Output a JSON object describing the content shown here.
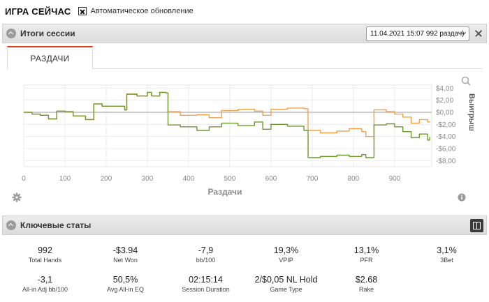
{
  "top": {
    "title": "ИГРА СЕЙЧАС",
    "auto_update_label": "Автоматическое обновление",
    "auto_update_checked": true
  },
  "session_panel": {
    "title": "Итоги сессии",
    "session_select_value": "11.04.2021 15:07 992 раздач)",
    "tab_label": "РАЗДАЧИ"
  },
  "chart_data": {
    "type": "line",
    "xlabel": "Раздачи",
    "ylabel": "Выигрыш",
    "xlim": [
      0,
      990
    ],
    "ylim": [
      -9,
      4.5
    ],
    "x_ticks": [
      0,
      100,
      200,
      300,
      400,
      500,
      600,
      700,
      800,
      900
    ],
    "x_tick_labels": [
      "0",
      "100",
      "200",
      "300",
      "400",
      "500",
      "600",
      "700",
      "800",
      "900"
    ],
    "y_ticks": [
      4,
      2,
      0,
      -2,
      -4,
      -6,
      -8
    ],
    "y_tick_labels": [
      "$4,00",
      "$2,00",
      "$0,00",
      "-$2,00",
      "-$4,00",
      "-$6,00",
      "-$8,00"
    ],
    "grid": true,
    "series": [
      {
        "color": "#f0a04b",
        "points": [
          [
            0,
            0
          ],
          [
            20,
            -0.3
          ],
          [
            40,
            -0.5
          ],
          [
            60,
            -1.1
          ],
          [
            80,
            0.2
          ],
          [
            100,
            0.1
          ],
          [
            120,
            -0.6
          ],
          [
            150,
            -1.2
          ],
          [
            170,
            1.4
          ],
          [
            190,
            1.0
          ],
          [
            210,
            1.0
          ],
          [
            245,
            0.4
          ],
          [
            250,
            3.0
          ],
          [
            275,
            2.7
          ],
          [
            300,
            3.3
          ],
          [
            310,
            2.7
          ],
          [
            330,
            3.3
          ],
          [
            345,
            3.2
          ],
          [
            350,
            0.1
          ],
          [
            380,
            -0.5
          ],
          [
            420,
            -0.4
          ],
          [
            450,
            -0.9
          ],
          [
            480,
            0.3
          ],
          [
            520,
            0.5
          ],
          [
            560,
            0.2
          ],
          [
            580,
            -0.5
          ],
          [
            600,
            0.5
          ],
          [
            640,
            0.7
          ],
          [
            680,
            0.6
          ],
          [
            690,
            -3.0
          ],
          [
            720,
            -3.4
          ],
          [
            760,
            -3.1
          ],
          [
            790,
            -2.7
          ],
          [
            820,
            -3.2
          ],
          [
            830,
            -4.0
          ],
          [
            850,
            0.4
          ],
          [
            880,
            0.1
          ],
          [
            900,
            -0.3
          ],
          [
            920,
            -0.8
          ],
          [
            940,
            -1.8
          ],
          [
            960,
            -1.2
          ],
          [
            980,
            -1.6
          ],
          [
            985,
            -1.5
          ]
        ]
      },
      {
        "color": "#6e9a2e",
        "points": [
          [
            0,
            0
          ],
          [
            20,
            -0.3
          ],
          [
            40,
            -0.5
          ],
          [
            60,
            -1.1
          ],
          [
            80,
            0.2
          ],
          [
            100,
            0.1
          ],
          [
            120,
            -0.6
          ],
          [
            150,
            -1.2
          ],
          [
            170,
            1.4
          ],
          [
            190,
            1.0
          ],
          [
            210,
            1.0
          ],
          [
            245,
            0.4
          ],
          [
            250,
            3.0
          ],
          [
            275,
            2.7
          ],
          [
            300,
            3.3
          ],
          [
            310,
            2.7
          ],
          [
            330,
            3.3
          ],
          [
            345,
            3.2
          ],
          [
            350,
            -2.1
          ],
          [
            380,
            -2.4
          ],
          [
            420,
            -3.0
          ],
          [
            450,
            -2.4
          ],
          [
            480,
            -1.8
          ],
          [
            520,
            -2.2
          ],
          [
            560,
            -1.6
          ],
          [
            580,
            -2.8
          ],
          [
            600,
            -2.0
          ],
          [
            640,
            -2.3
          ],
          [
            680,
            -3.0
          ],
          [
            690,
            -7.5
          ],
          [
            720,
            -7.3
          ],
          [
            760,
            -7.1
          ],
          [
            790,
            -7.3
          ],
          [
            820,
            -7.0
          ],
          [
            830,
            -7.5
          ],
          [
            850,
            -2.1
          ],
          [
            880,
            -1.9
          ],
          [
            900,
            -2.4
          ],
          [
            920,
            -3.2
          ],
          [
            940,
            -4.2
          ],
          [
            960,
            -3.6
          ],
          [
            980,
            -4.6
          ],
          [
            985,
            -4.1
          ]
        ]
      }
    ]
  },
  "stats_panel": {
    "title": "Ключевые статы",
    "row1": [
      {
        "value": "992",
        "label": "Total Hands"
      },
      {
        "value": "-$3.94",
        "label": "Net Won"
      },
      {
        "value": "-7,9",
        "label": "bb/100"
      },
      {
        "value": "19,3%",
        "label": "VPIP"
      },
      {
        "value": "13,1%",
        "label": "PFR"
      },
      {
        "value": "3,1%",
        "label": "3Bet"
      }
    ],
    "row2": [
      {
        "value": "-3,1",
        "label": "All-in Adj bb/100"
      },
      {
        "value": "50,5%",
        "label": "Avg All-in EQ"
      },
      {
        "value": "02:15:14",
        "label": "Session Duration"
      },
      {
        "value": "2/$0,05 NL Hold",
        "label": "Game Type"
      },
      {
        "value": "$2.68",
        "label": "Rake"
      }
    ]
  }
}
